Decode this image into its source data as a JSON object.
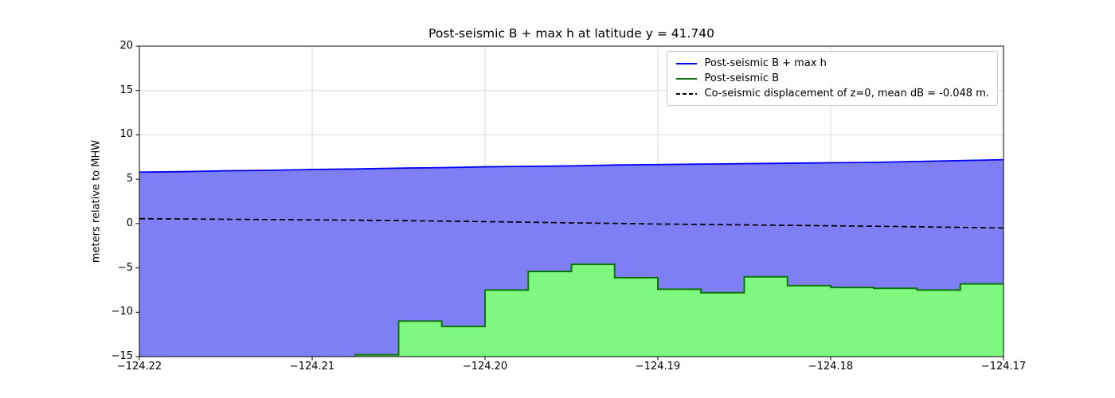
{
  "figure": {
    "title": "Post-seismic B + max h at latitude y = 41.740",
    "ylabel": "meters relative to MHW",
    "background": "#ffffff"
  },
  "legend": {
    "items": [
      {
        "label": "Post-seismic B + max h",
        "color": "#0000ff",
        "style": "solid"
      },
      {
        "label": "Post-seismic B",
        "color": "#0e730e",
        "style": "solid"
      },
      {
        "label": "Co-seismic displacement of z=0, mean dB = -0.048 m.",
        "color": "#000000",
        "style": "dashed"
      }
    ]
  },
  "chart_data": {
    "type": "line",
    "title": "Post-seismic B + max h at latitude y = 41.740",
    "xlabel": "",
    "ylabel": "meters relative to MHW",
    "xlim": [
      -124.22,
      -124.17
    ],
    "ylim": [
      -15,
      20
    ],
    "grid": true,
    "grid_color": "#d8d8d8",
    "legend_position": "upper right",
    "xticks": {
      "values": [
        -124.22,
        -124.21,
        -124.2,
        -124.19,
        -124.18,
        -124.17
      ],
      "labels": [
        "−124.22",
        "−124.21",
        "−124.20",
        "−124.19",
        "−124.18",
        "−124.17"
      ]
    },
    "yticks": {
      "values": [
        20,
        15,
        10,
        5,
        0,
        -5,
        -10,
        -15
      ],
      "labels": [
        "20",
        "15",
        "10",
        "5",
        "0",
        "−5",
        "−10",
        "−15"
      ]
    },
    "series": [
      {
        "name": "Post-seismic B + max h",
        "render": "line-fill",
        "line_color": "#0000ff",
        "fill_color": "#7f7ff5",
        "x": [
          -124.22,
          -124.2175,
          -124.215,
          -124.2125,
          -124.21,
          -124.2075,
          -124.205,
          -124.2025,
          -124.2,
          -124.1975,
          -124.195,
          -124.1925,
          -124.19,
          -124.1875,
          -124.185,
          -124.1825,
          -124.18,
          -124.1775,
          -124.175,
          -124.1725,
          -124.17
        ],
        "y": [
          5.8,
          5.85,
          5.95,
          6.0,
          6.1,
          6.15,
          6.25,
          6.3,
          6.4,
          6.45,
          6.5,
          6.6,
          6.65,
          6.7,
          6.75,
          6.8,
          6.85,
          6.9,
          7.0,
          7.1,
          7.2
        ]
      },
      {
        "name": "Post-seismic B",
        "render": "step-fill",
        "line_color": "#0e730e",
        "fill_color": "#7ef87e",
        "x_edges": [
          -124.22,
          -124.2175,
          -124.215,
          -124.2125,
          -124.21,
          -124.2075,
          -124.205,
          -124.2025,
          -124.2,
          -124.1975,
          -124.195,
          -124.1925,
          -124.19,
          -124.1875,
          -124.185,
          -124.1825,
          -124.18,
          -124.1775,
          -124.175,
          -124.1725,
          -124.17
        ],
        "levels": [
          -16,
          -16,
          -16,
          -16,
          -16,
          -14.8,
          -11.0,
          -11.6,
          -7.5,
          -5.4,
          -4.6,
          -6.1,
          -7.4,
          -7.8,
          -6.0,
          -7.0,
          -7.2,
          -7.3,
          -7.5,
          -6.8
        ]
      },
      {
        "name": "Co-seismic displacement of z=0, mean dB = -0.048 m.",
        "render": "dashed-line",
        "line_color": "#000000",
        "x": [
          -124.22,
          -124.2175,
          -124.215,
          -124.2125,
          -124.21,
          -124.2075,
          -124.205,
          -124.2025,
          -124.2,
          -124.1975,
          -124.195,
          -124.1925,
          -124.19,
          -124.1875,
          -124.185,
          -124.1825,
          -124.18,
          -124.1775,
          -124.175,
          -124.1725,
          -124.17
        ],
        "y": [
          0.55,
          0.52,
          0.48,
          0.45,
          0.42,
          0.38,
          0.33,
          0.28,
          0.22,
          0.15,
          0.08,
          0.02,
          -0.05,
          -0.1,
          -0.15,
          -0.2,
          -0.25,
          -0.3,
          -0.36,
          -0.43,
          -0.5
        ]
      }
    ]
  }
}
